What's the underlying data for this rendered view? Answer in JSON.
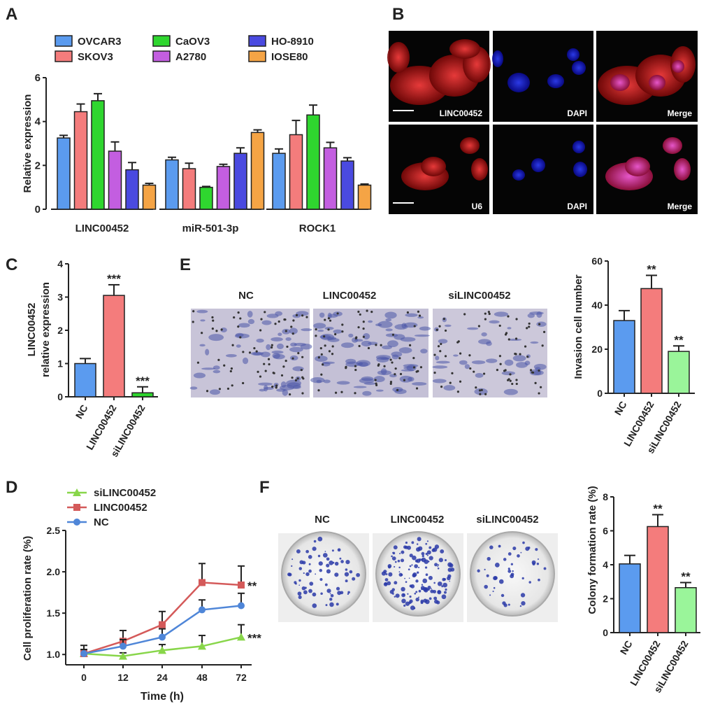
{
  "panels": {
    "A": "A",
    "B": "B",
    "C": "C",
    "D": "D",
    "E": "E",
    "F": "F"
  },
  "colors": {
    "blue": "#5b9bef",
    "red": "#f47c7c",
    "green": "#2fd62f",
    "purple": "#c35ee0",
    "navy": "#4a4ae0",
    "orange": "#f5a445",
    "lightgreen": "#9af59a",
    "line_green": "#88d64a",
    "line_red": "#d45a5a",
    "line_blue": "#4f86d8"
  },
  "chart_data": [
    {
      "id": "A",
      "type": "bar",
      "categories": [
        "LINC00452",
        "miR-501-3p",
        "ROCK1"
      ],
      "ylabel": "Relative expression",
      "ylim": [
        0,
        6
      ],
      "yticks": [
        "0",
        "2",
        "4",
        "6"
      ],
      "legend_placement": "top",
      "series": [
        {
          "name": "OVCAR3",
          "color": "#5b9bef",
          "values": [
            3.25,
            2.25,
            2.55
          ],
          "errors": [
            0.12,
            0.12,
            0.2
          ]
        },
        {
          "name": "SKOV3",
          "color": "#f47c7c",
          "values": [
            4.45,
            1.85,
            3.4
          ],
          "errors": [
            0.35,
            0.25,
            0.65
          ]
        },
        {
          "name": "CaOV3",
          "color": "#2fd62f",
          "values": [
            4.95,
            1.0,
            4.3
          ],
          "errors": [
            0.32,
            0.04,
            0.45
          ]
        },
        {
          "name": "A2780",
          "color": "#c35ee0",
          "values": [
            2.65,
            1.95,
            2.8
          ],
          "errors": [
            0.42,
            0.1,
            0.25
          ]
        },
        {
          "name": "HO-8910",
          "color": "#4a4ae0",
          "values": [
            1.8,
            2.55,
            2.2
          ],
          "errors": [
            0.33,
            0.25,
            0.15
          ]
        },
        {
          "name": "IOSE80",
          "color": "#f5a445",
          "values": [
            1.1,
            3.5,
            1.1
          ],
          "errors": [
            0.08,
            0.12,
            0.05
          ]
        }
      ]
    },
    {
      "id": "C",
      "type": "bar",
      "categories": [
        "NC",
        "LINC00452",
        "siLINC00452"
      ],
      "ylabel_lines": [
        "LINC00452",
        "relative expression"
      ],
      "ylim": [
        0,
        4
      ],
      "yticks": [
        "0",
        "1",
        "2",
        "3",
        "4"
      ],
      "values": [
        1.0,
        3.05,
        0.12
      ],
      "errors": [
        0.15,
        0.32,
        0.18
      ],
      "colors": [
        "#5b9bef",
        "#f47c7c",
        "#2fd62f"
      ],
      "annotations": [
        "",
        "***",
        "***"
      ]
    },
    {
      "id": "E-chart",
      "type": "bar",
      "categories": [
        "NC",
        "LINC00452",
        "siLINC00452"
      ],
      "ylabel": "Invasion cell number",
      "ylim": [
        0,
        60
      ],
      "yticks": [
        "0",
        "20",
        "40",
        "60"
      ],
      "values": [
        33,
        47.5,
        19
      ],
      "errors": [
        4.5,
        6.0,
        2.5
      ],
      "colors": [
        "#5b9bef",
        "#f47c7c",
        "#9af59a"
      ],
      "annotations": [
        "",
        "**",
        "**"
      ]
    },
    {
      "id": "D",
      "type": "line",
      "x": [
        "0",
        "12",
        "24",
        "48",
        "72"
      ],
      "xlabel": "Time (h)",
      "ylabel": "Cell proliferation rate (%)",
      "ylim": [
        0.875,
        2.5
      ],
      "yticks": [
        "1.0",
        "1.5",
        "2.0",
        "2.5"
      ],
      "legend_placement": "top-left",
      "series": [
        {
          "name": "siLINC00452",
          "color": "#88d64a",
          "marker": "triangle",
          "values": [
            1.01,
            0.98,
            1.05,
            1.1,
            1.21
          ],
          "errors": [
            0.05,
            0.04,
            0.07,
            0.13,
            0.15
          ],
          "annotation": "***"
        },
        {
          "name": "LINC00452",
          "color": "#d45a5a",
          "marker": "square",
          "values": [
            1.01,
            1.16,
            1.36,
            1.87,
            1.84
          ],
          "errors": [
            0.1,
            0.13,
            0.16,
            0.23,
            0.23
          ],
          "annotation": "**"
        },
        {
          "name": "NC",
          "color": "#4f86d8",
          "marker": "circle",
          "values": [
            1.01,
            1.1,
            1.21,
            1.54,
            1.59
          ],
          "errors": [
            0.05,
            0.08,
            0.1,
            0.12,
            0.15
          ],
          "annotation": ""
        }
      ]
    },
    {
      "id": "F-chart",
      "type": "bar",
      "categories": [
        "NC",
        "LINC00452",
        "siLINC00452"
      ],
      "ylabel": "Colony formation rate (%)",
      "ylim": [
        0,
        8
      ],
      "yticks": [
        "0",
        "2",
        "4",
        "6",
        "8"
      ],
      "values": [
        4.05,
        6.25,
        2.65
      ],
      "errors": [
        0.5,
        0.7,
        0.3
      ],
      "colors": [
        "#5b9bef",
        "#f47c7c",
        "#9af59a"
      ],
      "annotations": [
        "",
        "**",
        "**"
      ]
    }
  ],
  "panel_b": {
    "row1_labels": [
      "LINC00452",
      "DAPI",
      "Merge"
    ],
    "row2_labels": [
      "U6",
      "DAPI",
      "Merge"
    ]
  },
  "panel_e": {
    "image_labels": [
      "NC",
      "LINC00452",
      "siLINC00452"
    ]
  },
  "panel_f": {
    "image_labels": [
      "NC",
      "LINC00452",
      "siLINC00452"
    ]
  }
}
